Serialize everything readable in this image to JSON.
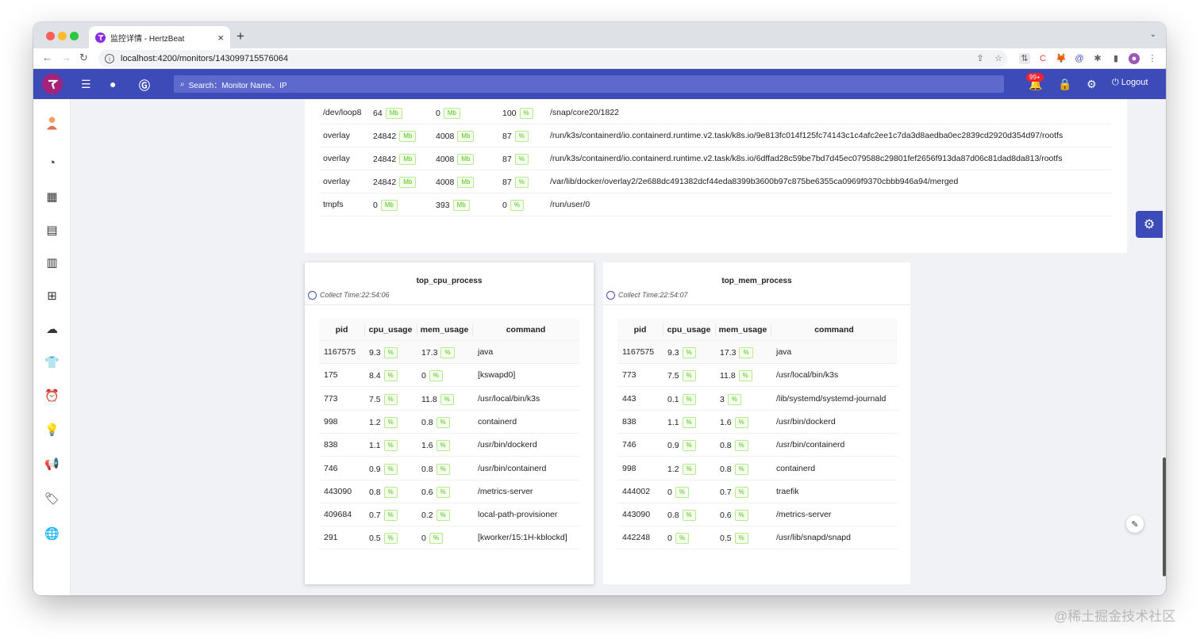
{
  "browser": {
    "tab_title": "监控详情 - HertzBeat",
    "url": "localhost:4200/monitors/143099715576064"
  },
  "header": {
    "search_placeholder": "Search：Monitor Name、IP",
    "badge": "99+",
    "logout": "Logout"
  },
  "disk": {
    "rows": [
      {
        "name": "/dev/loop8",
        "total": "64",
        "total_unit": "Mb",
        "avail": "0",
        "avail_unit": "Mb",
        "usage": "100",
        "usage_unit": "%",
        "mount": "/snap/core20/1822"
      },
      {
        "name": "overlay",
        "total": "24842",
        "total_unit": "Mb",
        "avail": "4008",
        "avail_unit": "Mb",
        "usage": "87",
        "usage_unit": "%",
        "mount": "/run/k3s/containerd/io.containerd.runtime.v2.task/k8s.io/9e813fc014f125fc74143c1c4afc2ee1c7da3d8aedba0ec2839cd2920d354d97/rootfs"
      },
      {
        "name": "overlay",
        "total": "24842",
        "total_unit": "Mb",
        "avail": "4008",
        "avail_unit": "Mb",
        "usage": "87",
        "usage_unit": "%",
        "mount": "/run/k3s/containerd/io.containerd.runtime.v2.task/k8s.io/6dffad28c59be7bd7d45ec079588c29801fef2656f913da87d06c81dad8da813/rootfs"
      },
      {
        "name": "overlay",
        "total": "24842",
        "total_unit": "Mb",
        "avail": "4008",
        "avail_unit": "Mb",
        "usage": "87",
        "usage_unit": "%",
        "mount": "/var/lib/docker/overlay2/2e688dc491382dcf44eda8399b3600b97c875be6355ca0969f9370cbbb946a94/merged"
      },
      {
        "name": "tmpfs",
        "total": "0",
        "total_unit": "Mb",
        "avail": "393",
        "avail_unit": "Mb",
        "usage": "0",
        "usage_unit": "%",
        "mount": "/run/user/0"
      }
    ]
  },
  "cpu_panel": {
    "title": "top_cpu_process",
    "collect_time": "Collect Time:22:54:06",
    "columns": [
      "pid",
      "cpu_usage",
      "mem_usage",
      "command"
    ],
    "rows": [
      {
        "pid": "1167575",
        "cpu": "9.3",
        "mem": "17.3",
        "cmd": "java"
      },
      {
        "pid": "175",
        "cpu": "8.4",
        "mem": "0",
        "cmd": "[kswapd0]"
      },
      {
        "pid": "773",
        "cpu": "7.5",
        "mem": "11.8",
        "cmd": "/usr/local/bin/k3s"
      },
      {
        "pid": "998",
        "cpu": "1.2",
        "mem": "0.8",
        "cmd": "containerd"
      },
      {
        "pid": "838",
        "cpu": "1.1",
        "mem": "1.6",
        "cmd": "/usr/bin/dockerd"
      },
      {
        "pid": "746",
        "cpu": "0.9",
        "mem": "0.8",
        "cmd": "/usr/bin/containerd"
      },
      {
        "pid": "443090",
        "cpu": "0.8",
        "mem": "0.6",
        "cmd": "/metrics-server"
      },
      {
        "pid": "409684",
        "cpu": "0.7",
        "mem": "0.2",
        "cmd": "local-path-provisioner"
      },
      {
        "pid": "291",
        "cpu": "0.5",
        "mem": "0",
        "cmd": "[kworker/15:1H-kblockd]"
      }
    ]
  },
  "mem_panel": {
    "title": "top_mem_process",
    "collect_time": "Collect Time:22:54:07",
    "columns": [
      "pid",
      "cpu_usage",
      "mem_usage",
      "command"
    ],
    "rows": [
      {
        "pid": "1167575",
        "cpu": "9.3",
        "mem": "17.3",
        "cmd": "java"
      },
      {
        "pid": "773",
        "cpu": "7.5",
        "mem": "11.8",
        "cmd": "/usr/local/bin/k3s"
      },
      {
        "pid": "443",
        "cpu": "0.1",
        "mem": "3",
        "cmd": "/lib/systemd/systemd-journald"
      },
      {
        "pid": "838",
        "cpu": "1.1",
        "mem": "1.6",
        "cmd": "/usr/bin/dockerd"
      },
      {
        "pid": "746",
        "cpu": "0.9",
        "mem": "0.8",
        "cmd": "/usr/bin/containerd"
      },
      {
        "pid": "998",
        "cpu": "1.2",
        "mem": "0.8",
        "cmd": "containerd"
      },
      {
        "pid": "444002",
        "cpu": "0",
        "mem": "0.7",
        "cmd": "traefik"
      },
      {
        "pid": "443090",
        "cpu": "0.8",
        "mem": "0.6",
        "cmd": "/metrics-server"
      },
      {
        "pid": "442248",
        "cpu": "0",
        "mem": "0.5",
        "cmd": "/usr/lib/snapd/snapd"
      }
    ]
  },
  "percent_unit": "%",
  "sidebar_icons": [
    "avatar-icon",
    "dashboard-icon",
    "apps-icon",
    "server-icon",
    "layout-icon",
    "components-icon",
    "cloud-icon",
    "shirt-icon",
    "alarm-icon",
    "bulb-icon",
    "notification-icon",
    "tag-icon",
    "globe-icon"
  ],
  "watermark": "@稀土掘金技术社区",
  "colors": {
    "header": "#3d4bb8",
    "search": "#5d69cc",
    "unit_green": "#52c41a",
    "badge_red": "#f5222d"
  }
}
